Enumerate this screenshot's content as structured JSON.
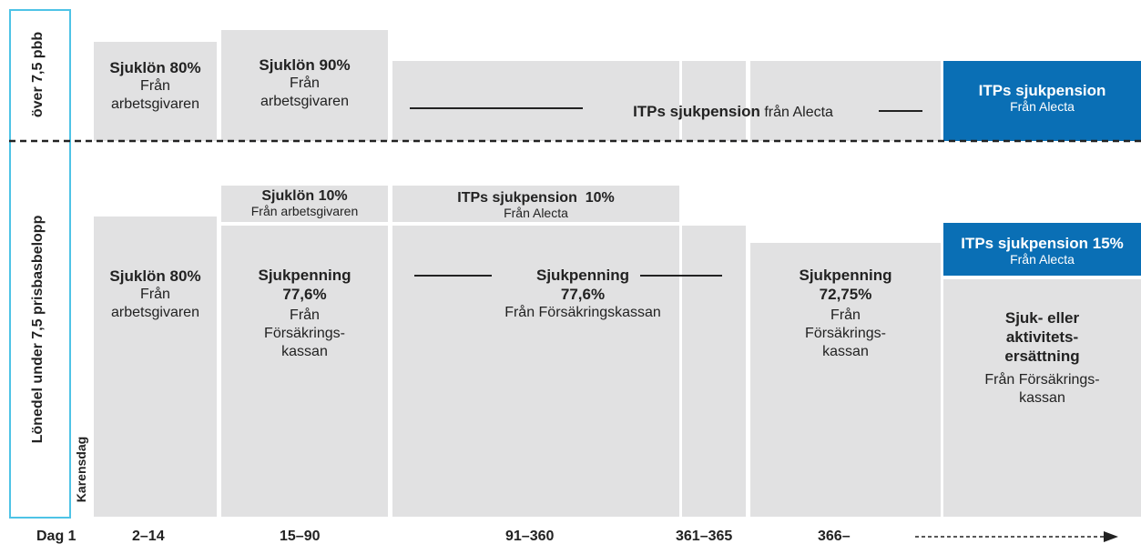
{
  "side_labels": {
    "upper": "över 7,5 pbb",
    "lower": "Lönedel under 7,5 prisbasbelopp",
    "karensdag": "Karensdag"
  },
  "upper": {
    "a": {
      "title": "Sjuklön 80%",
      "sub": [
        "Från",
        "arbetsgivaren"
      ]
    },
    "b": {
      "title": "Sjuklön 90%",
      "sub": [
        "Från",
        "arbetsgivaren"
      ]
    },
    "c": {
      "title": "ITPs sjukpension",
      "sub": "från Alecta"
    },
    "d": {
      "title": "ITPs sjukpension",
      "sub": "Från Alecta"
    }
  },
  "lower": {
    "a": {
      "title": "Sjuklön 80%",
      "sub": [
        "Från",
        "arbetsgivaren"
      ]
    },
    "b_top": {
      "title": "Sjuklön 10%",
      "sub": "Från arbetsgivaren"
    },
    "b": {
      "title": [
        "Sjukpenning",
        "77,6%"
      ],
      "sub": [
        "Från",
        "Försäkrings-",
        "kassan"
      ]
    },
    "c_top": {
      "title": "ITPs sjukpension  10%",
      "sub": "Från Alecta"
    },
    "c": {
      "title": [
        "Sjukpenning",
        "77,6%"
      ],
      "sub": "Från Försäkringskassan"
    },
    "d": {
      "title": [
        "Sjukpenning",
        "72,75%"
      ],
      "sub": [
        "Från",
        "Försäkrings-",
        "kassan"
      ]
    },
    "e_top": {
      "title": "ITPs sjukpension 15%",
      "sub": "Från Alecta"
    },
    "e": {
      "title": [
        "Sjuk- eller",
        "aktivitets-",
        "ersättning"
      ],
      "sub": [
        "Från Försäkrings-",
        "kassan"
      ]
    }
  },
  "days": [
    "Dag 1",
    "2–14",
    "15–90",
    "91–360",
    "361–365",
    "366–"
  ]
}
